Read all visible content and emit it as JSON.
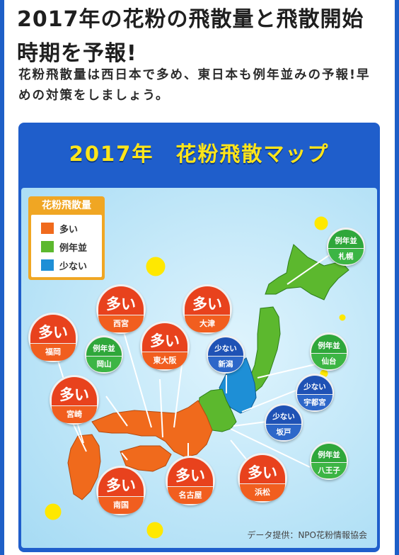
{
  "headline": "2017年の花粉の飛散量と飛散開始時期を予報!",
  "lead": "花粉飛散量は西日本で多め、東日本も例年並みの予報!早めの対策をしましょう。",
  "map": {
    "title": "2017年　花粉飛散マップ",
    "legend": {
      "title": "花粉飛散量",
      "items": [
        {
          "label": "多い",
          "color": "#f06a1c"
        },
        {
          "label": "例年並",
          "color": "#5cb82e"
        },
        {
          "label": "少ない",
          "color": "#1e8fd6"
        }
      ]
    },
    "cities": [
      {
        "city": "福岡",
        "level": "多い"
      },
      {
        "city": "西宮",
        "level": "多い"
      },
      {
        "city": "大津",
        "level": "多い"
      },
      {
        "city": "東大阪",
        "level": "多い"
      },
      {
        "city": "岡山",
        "level": "例年並"
      },
      {
        "city": "宮崎",
        "level": "多い"
      },
      {
        "city": "南国",
        "level": "多い"
      },
      {
        "city": "名古屋",
        "level": "多い"
      },
      {
        "city": "浜松",
        "level": "多い"
      },
      {
        "city": "新潟",
        "level": "少ない"
      },
      {
        "city": "札幌",
        "level": "例年並"
      },
      {
        "city": "仙台",
        "level": "例年並"
      },
      {
        "city": "宇都宮",
        "level": "少ない"
      },
      {
        "city": "坂戸",
        "level": "少ない"
      },
      {
        "city": "八王子",
        "level": "例年並"
      }
    ],
    "credit": "データ提供：NPO花粉情報協会"
  }
}
